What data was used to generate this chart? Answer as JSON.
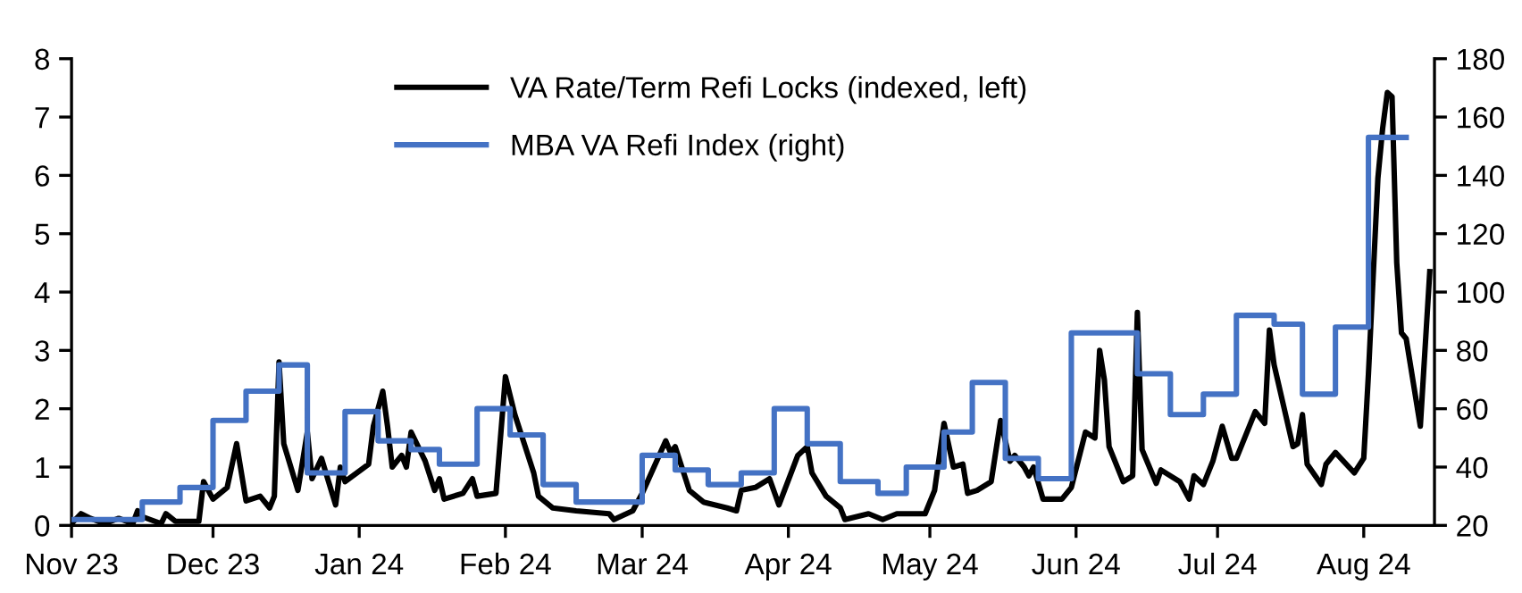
{
  "chart_data": {
    "type": "line",
    "xlim": [
      "2023-11-01",
      "2024-08-16"
    ],
    "xticks": [
      {
        "value": "2023-11-01",
        "label": "Nov 23"
      },
      {
        "value": "2023-12-01",
        "label": "Dec 23"
      },
      {
        "value": "2024-01-01",
        "label": "Jan 24"
      },
      {
        "value": "2024-02-01",
        "label": "Feb 24"
      },
      {
        "value": "2024-03-01",
        "label": "Mar 24"
      },
      {
        "value": "2024-04-01",
        "label": "Apr 24"
      },
      {
        "value": "2024-05-01",
        "label": "May 24"
      },
      {
        "value": "2024-06-01",
        "label": "Jun 24"
      },
      {
        "value": "2024-07-01",
        "label": "Jul 24"
      },
      {
        "value": "2024-08-01",
        "label": "Aug 24"
      }
    ],
    "ylim": [
      0,
      8
    ],
    "yticks": [
      0,
      1,
      2,
      3,
      4,
      5,
      6,
      7,
      8
    ],
    "y2lim": [
      20,
      180
    ],
    "y2ticks": [
      20,
      40,
      60,
      80,
      100,
      120,
      140,
      160,
      180
    ],
    "grid": false,
    "legend": "top",
    "marker": "none",
    "line_style": "solid",
    "series": [
      {
        "name": "VA Rate/Term Refi Locks (indexed, left)",
        "color": "#000000",
        "x": [
          "2023-11-01",
          "2023-11-03",
          "2023-11-05",
          "2023-11-08",
          "2023-11-11",
          "2023-11-14",
          "2023-11-15",
          "2023-11-16",
          "2023-11-20",
          "2023-11-21",
          "2023-11-23",
          "2023-11-28",
          "2023-11-29",
          "2023-12-01",
          "2023-12-04",
          "2023-12-06",
          "2023-12-08",
          "2023-12-11",
          "2023-12-13",
          "2023-12-14",
          "2023-12-15",
          "2023-12-16",
          "2023-12-19",
          "2023-12-21",
          "2023-12-22",
          "2023-12-24",
          "2023-12-27",
          "2023-12-28",
          "2023-12-29",
          "2024-01-03",
          "2024-01-04",
          "2024-01-06",
          "2024-01-07",
          "2024-01-08",
          "2024-01-10",
          "2024-01-11",
          "2024-01-12",
          "2024-01-15",
          "2024-01-17",
          "2024-01-18",
          "2024-01-19",
          "2024-01-23",
          "2024-01-25",
          "2024-01-26",
          "2024-01-30",
          "2024-02-01",
          "2024-02-03",
          "2024-02-05",
          "2024-02-07",
          "2024-02-08",
          "2024-02-11",
          "2024-02-16",
          "2024-02-23",
          "2024-02-24",
          "2024-02-28",
          "2024-03-01",
          "2024-03-06",
          "2024-03-07",
          "2024-03-08",
          "2024-03-11",
          "2024-03-14",
          "2024-03-19",
          "2024-03-21",
          "2024-03-22",
          "2024-03-25",
          "2024-03-28",
          "2024-03-30",
          "2024-04-03",
          "2024-04-05",
          "2024-04-06",
          "2024-04-09",
          "2024-04-12",
          "2024-04-13",
          "2024-04-18",
          "2024-04-21",
          "2024-04-24",
          "2024-04-30",
          "2024-05-02",
          "2024-05-04",
          "2024-05-06",
          "2024-05-08",
          "2024-05-09",
          "2024-05-11",
          "2024-05-14",
          "2024-05-16",
          "2024-05-18",
          "2024-05-19",
          "2024-05-21",
          "2024-05-22",
          "2024-05-23",
          "2024-05-25",
          "2024-05-29",
          "2024-05-31",
          "2024-06-03",
          "2024-06-05",
          "2024-06-06",
          "2024-06-07",
          "2024-06-08",
          "2024-06-11",
          "2024-06-13",
          "2024-06-14",
          "2024-06-15",
          "2024-06-18",
          "2024-06-19",
          "2024-06-23",
          "2024-06-25",
          "2024-06-26",
          "2024-06-28",
          "2024-06-30",
          "2024-07-02",
          "2024-07-04",
          "2024-07-05",
          "2024-07-09",
          "2024-07-11",
          "2024-07-12",
          "2024-07-13",
          "2024-07-15",
          "2024-07-17",
          "2024-07-18",
          "2024-07-19",
          "2024-07-20",
          "2024-07-23",
          "2024-07-24",
          "2024-07-26",
          "2024-07-30",
          "2024-08-01",
          "2024-08-02",
          "2024-08-04",
          "2024-08-05",
          "2024-08-06",
          "2024-08-07",
          "2024-08-08",
          "2024-08-09",
          "2024-08-10",
          "2024-08-13",
          "2024-08-15"
        ],
        "values": [
          0.03,
          0.2,
          0.12,
          0.03,
          0.12,
          0.03,
          0.25,
          0.15,
          0.03,
          0.2,
          0.07,
          0.07,
          0.75,
          0.45,
          0.65,
          1.4,
          0.42,
          0.5,
          0.3,
          0.5,
          2.8,
          1.4,
          0.6,
          1.6,
          0.8,
          1.15,
          0.35,
          1.0,
          0.75,
          1.05,
          1.7,
          2.3,
          1.7,
          1.0,
          1.2,
          1.0,
          1.6,
          1.1,
          0.6,
          0.8,
          0.45,
          0.55,
          0.8,
          0.5,
          0.55,
          2.55,
          1.9,
          1.4,
          0.9,
          0.5,
          0.3,
          0.25,
          0.2,
          0.1,
          0.25,
          0.55,
          1.45,
          1.25,
          1.35,
          0.6,
          0.4,
          0.3,
          0.25,
          0.6,
          0.65,
          0.8,
          0.35,
          1.2,
          1.35,
          0.9,
          0.5,
          0.3,
          0.1,
          0.2,
          0.1,
          0.2,
          0.2,
          0.6,
          1.75,
          1.0,
          1.05,
          0.55,
          0.6,
          0.75,
          1.8,
          1.1,
          1.2,
          1.0,
          0.85,
          1.0,
          0.45,
          0.45,
          0.65,
          1.6,
          1.5,
          3.0,
          2.5,
          1.35,
          0.75,
          0.85,
          3.65,
          1.3,
          0.72,
          0.95,
          0.75,
          0.45,
          0.85,
          0.7,
          1.1,
          1.7,
          1.15,
          1.15,
          1.95,
          1.75,
          3.35,
          2.75,
          2.05,
          1.35,
          1.4,
          1.9,
          1.05,
          0.7,
          1.05,
          1.25,
          0.9,
          1.15,
          2.6,
          5.95,
          6.8,
          7.42,
          7.35,
          4.5,
          3.3,
          3.2,
          1.7,
          4.35
        ]
      },
      {
        "name": "MBA VA Refi Index (right)",
        "type": "step",
        "axis": "y2",
        "color": "#4472c4",
        "x": [
          "2023-11-01",
          "2023-11-16",
          "2023-11-24",
          "2023-12-01",
          "2023-12-08",
          "2023-12-15",
          "2023-12-21",
          "2023-12-29",
          "2024-01-05",
          "2024-01-12",
          "2024-01-18",
          "2024-01-26",
          "2024-02-02",
          "2024-02-09",
          "2024-02-16",
          "2024-03-01",
          "2024-03-08",
          "2024-03-15",
          "2024-03-22",
          "2024-03-29",
          "2024-04-05",
          "2024-04-12",
          "2024-04-20",
          "2024-04-26",
          "2024-05-04",
          "2024-05-10",
          "2024-05-17",
          "2024-05-24",
          "2024-05-31",
          "2024-06-14",
          "2024-06-21",
          "2024-06-28",
          "2024-07-05",
          "2024-07-13",
          "2024-07-19",
          "2024-07-26",
          "2024-08-02",
          "2024-08-10"
        ],
        "values": [
          22,
          28,
          33,
          56,
          66,
          75,
          38,
          59,
          49,
          46,
          41,
          60,
          51,
          34,
          28,
          44,
          39,
          34,
          38,
          60,
          48,
          35,
          31,
          40,
          52,
          69,
          43,
          36,
          86,
          72,
          58,
          65,
          92,
          89,
          65,
          88,
          153,
          153
        ]
      }
    ]
  }
}
